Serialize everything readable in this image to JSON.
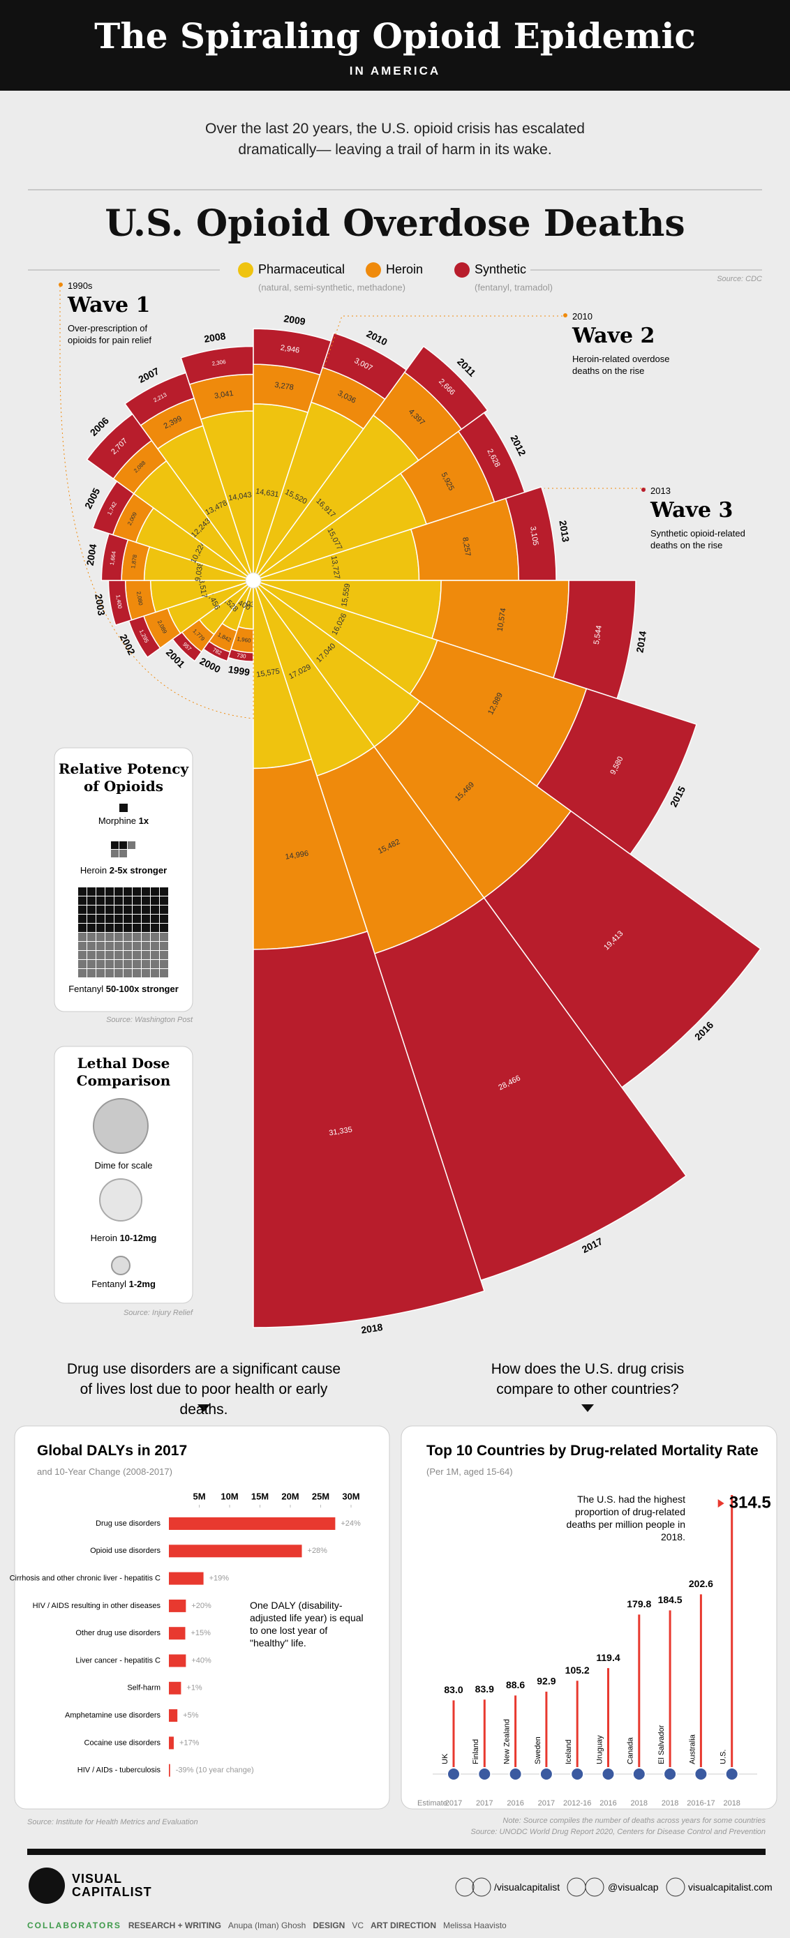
{
  "header": {
    "title": "The Spiraling Opioid Epidemic",
    "subtitle": "IN AMERICA"
  },
  "intro": "Over the last 20 years, the U.S. opioid crisis has escalated dramatically— leaving a trail of harm in its wake.",
  "chart_data": [
    {
      "type": "rose",
      "title": "U.S. Opioid Overdose Deaths",
      "source": "Source: CDC",
      "categories": [
        "1999",
        "2000",
        "2001",
        "2002",
        "2003",
        "2004",
        "2005",
        "2006",
        "2007",
        "2008",
        "2009",
        "2010",
        "2011",
        "2012",
        "2013",
        "2014",
        "2015",
        "2016",
        "2017",
        "2018"
      ],
      "series": [
        {
          "name": "Pharmaceutical",
          "note": "(natural, semi-synthetic, methadone)",
          "color": "#efc30f",
          "values": [
            4030,
            4400,
            5528,
            7456,
            8517,
            9038,
            10224,
            12243,
            13478,
            14043,
            14631,
            15520,
            16917,
            15077,
            13727,
            15559,
            16026,
            17040,
            17029,
            15575
          ],
          "value_labels": [
            "4,030",
            "4,400",
            "5,528",
            "7,456",
            "8,517",
            "9,038",
            "10,224",
            "12,243",
            "13,478",
            "14,043",
            "14,631",
            "15,520",
            "16,917",
            "15,077",
            "13,727",
            "15,559",
            "16,026",
            "17,040",
            "17,029",
            "15,575"
          ]
        },
        {
          "name": "Heroin",
          "color": "#ef8a0c",
          "values": [
            1960,
            1842,
            1779,
            2089,
            2080,
            1878,
            2009,
            2088,
            2399,
            3041,
            3278,
            3036,
            4397,
            5925,
            8257,
            10574,
            12989,
            15469,
            15482,
            14996
          ],
          "value_labels": [
            "1,960",
            "1,842",
            "1,779",
            "2,089",
            "2,080",
            "1,878",
            "2,009",
            "2,088",
            "2,399",
            "3,041",
            "3,278",
            "3,036",
            "4,397",
            "5,925",
            "8,257",
            "10,574",
            "12,989",
            "15,469",
            "15,482",
            "14,996"
          ]
        },
        {
          "name": "Synthetic",
          "note": "(fentanyl, tramadol)",
          "color": "#b81d2c",
          "values": [
            730,
            782,
            957,
            1295,
            1400,
            1664,
            1742,
            2707,
            2213,
            2306,
            2946,
            3007,
            2666,
            2628,
            3105,
            5544,
            9580,
            19413,
            28466,
            31335
          ],
          "value_labels": [
            "730",
            "782",
            "957",
            "1,295",
            "1,400",
            "1,664",
            "1,742",
            "2,707",
            "2,213",
            "2,306",
            "2,946",
            "3,007",
            "2,666",
            "2,628",
            "3,105",
            "5,544",
            "9,580",
            "19,413",
            "28,466",
            "31,335"
          ]
        }
      ],
      "annotations": [
        {
          "period": "1990s",
          "title": "Wave 1",
          "text": "Over-prescription of opioids for pain relief"
        },
        {
          "period": "2010",
          "title": "Wave 2",
          "text": "Heroin-related overdose deaths on the rise"
        },
        {
          "period": "2013",
          "title": "Wave 3",
          "text": "Synthetic opioid-related deaths on the rise"
        }
      ]
    },
    {
      "type": "hbar",
      "title": "Global DALYs in 2017",
      "subtitle": "and 10-Year Change (2008-2017)",
      "color": "#e8392f",
      "categories": [
        "Drug use disorders",
        "Opioid use disorders",
        "Cirrhosis and other chronic liver - hepatitis C",
        "HIV / AIDS resulting in other diseases",
        "Other drug use disorders",
        "Liver cancer - hepatitis C",
        "Self-harm",
        "Amphetamine use disorders",
        "Cocaine use disorders",
        "HIV / AIDs - tuberculosis"
      ],
      "values": [
        27.4,
        21.9,
        5.7,
        2.8,
        2.7,
        2.8,
        2.0,
        1.4,
        0.8,
        0.2
      ],
      "change_labels": [
        "+24%",
        "+28%",
        "+19%",
        "+20%",
        "+15%",
        "+40%",
        "+1%",
        "+5%",
        "+17%",
        "-39% (10 year change)"
      ],
      "xlim": [
        0,
        30
      ],
      "xticks": [
        {
          "value": 5,
          "label": "5M"
        },
        {
          "value": 10,
          "label": "10M"
        },
        {
          "value": 15,
          "label": "15M"
        },
        {
          "value": 20,
          "label": "20M"
        },
        {
          "value": 25,
          "label": "25M"
        },
        {
          "value": 30,
          "label": "30M"
        }
      ],
      "annotation": "One DALY (disability-adjusted life year) is equal to one lost year of \"healthy\" life.",
      "source": "Source: Institute for Health Metrics and Evaluation"
    },
    {
      "type": "lollipop",
      "title": "Top 10 Countries by Drug-related Mortality Rate",
      "subtitle": "(Per 1M, aged 15-64)",
      "color": "#e8392f",
      "categories": [
        "UK",
        "Finland",
        "New Zealand",
        "Sweden",
        "Iceland",
        "Uruguay",
        "Canada",
        "El Salvador",
        "Australia",
        "U.S."
      ],
      "values": [
        83.0,
        83.9,
        88.6,
        92.9,
        105.2,
        119.4,
        179.8,
        184.5,
        202.6,
        314.5
      ],
      "value_labels": [
        "83.0",
        "83.9",
        "88.6",
        "92.9",
        "105.2",
        "119.4",
        "179.8",
        "184.5",
        "202.6",
        "314.5"
      ],
      "estimate_label": "Estimate:",
      "estimates": [
        "2017",
        "2017",
        "2016",
        "2017",
        "2012-16",
        "2016",
        "2018",
        "2018",
        "2016-17",
        "2018"
      ],
      "annotation": "The U.S. had the highest proportion of drug-related deaths per million people in 2018.",
      "note": "Note: Source compiles the number of deaths across years for some countries",
      "source": "Source: UNODC World Drug Report 2020, Centers for Disease Control and Prevention"
    }
  ],
  "potency": {
    "title": "Relative Potency of Opioids",
    "items": [
      {
        "name": "Morphine",
        "strength": "1x"
      },
      {
        "name": "Heroin",
        "strength": "2-5x stronger"
      },
      {
        "name": "Fentanyl",
        "strength": "50-100x stronger"
      }
    ],
    "source": "Source: Washington Post"
  },
  "lethal_dose": {
    "title": "Lethal Dose Comparison",
    "items": [
      {
        "name": "Dime for scale"
      },
      {
        "name": "Heroin",
        "dose": "10-12mg"
      },
      {
        "name": "Fentanyl",
        "dose": "1-2mg"
      }
    ],
    "source": "Source: Injury Relief"
  },
  "prompts": [
    "Drug use disorders are a significant cause of lives lost due to poor health or early deaths.",
    "How does the U.S. drug crisis compare to other countries?"
  ],
  "footer": {
    "brand": [
      "VISUAL",
      "CAPITALIST"
    ],
    "social": [
      "/visualcapitalist",
      "@visualcap",
      "visualcapitalist.com"
    ],
    "credits": [
      "COLLABORATORS",
      "RESEARCH + WRITING",
      "Anupa (Iman) Ghosh",
      "DESIGN",
      "VC",
      "ART DIRECTION",
      "Melissa Haavisto"
    ]
  }
}
